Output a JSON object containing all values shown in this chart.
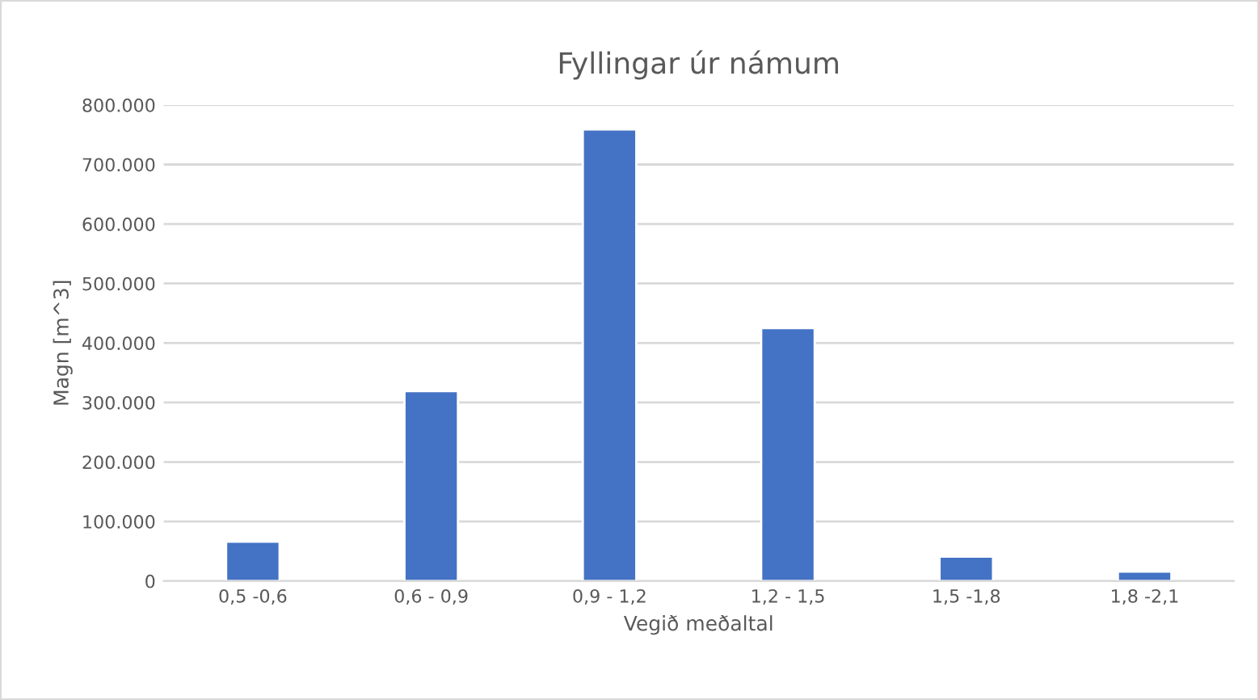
{
  "chart_data": {
    "type": "bar",
    "title": "Fyllingar úr námum",
    "xlabel": "Vegið meðaltal",
    "ylabel": "Magn [m^3]",
    "categories": [
      "0,5 -0,6",
      "0,6 - 0,9",
      "0,9 - 1,2",
      "1,2 - 1,5",
      "1,5 -1,8",
      "1,8 -2,1"
    ],
    "values": [
      66000,
      319000,
      759000,
      425000,
      41000,
      16000
    ],
    "color": "#4472c4",
    "ylim": [
      0,
      800000
    ],
    "yticks": [
      0,
      {
        "value": 100000,
        "label": "100.000"
      },
      {
        "value": 200000,
        "label": "200.000"
      },
      {
        "value": 300000,
        "label": "300.000"
      },
      {
        "value": 400000,
        "label": "400.000"
      },
      {
        "value": 500000,
        "label": "500.000"
      },
      {
        "value": 600000,
        "label": "600.000"
      },
      {
        "value": 700000,
        "label": "700.000"
      },
      {
        "value": 800000,
        "label": "800.000"
      }
    ],
    "grid": "y",
    "legend": false
  }
}
